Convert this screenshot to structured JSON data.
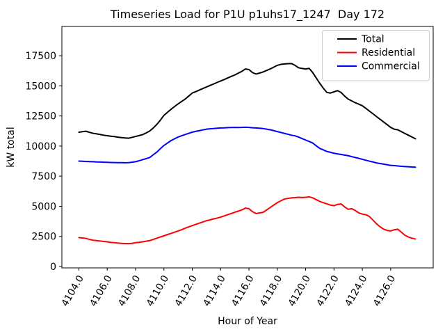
{
  "chart_data": {
    "type": "line",
    "title": "Timeseries Load for P1U p1uhs17_1247  Day 172",
    "xlabel": "Hour of Year",
    "ylabel": "kW total",
    "x_start": 4104.0,
    "x_step": 0.25,
    "xlim": [
      4102.8,
      4129.0
    ],
    "ylim": [
      -115,
      19930
    ],
    "grid": false,
    "legend_position": "upper right",
    "xticks": [
      4104,
      4106,
      4108,
      4110,
      4112,
      4114,
      4116,
      4118,
      4120,
      4122,
      4124,
      4126
    ],
    "xtick_labels": [
      "4104.0",
      "4106.0",
      "4108.0",
      "4110.0",
      "4112.0",
      "4114.0",
      "4116.0",
      "4118.0",
      "4120.0",
      "4122.0",
      "4124.0",
      "4126.0"
    ],
    "yticks": [
      0,
      2500,
      5000,
      7500,
      10000,
      12500,
      15000,
      17500
    ],
    "ytick_labels": [
      "0",
      "2500",
      "5000",
      "7500",
      "10000",
      "12500",
      "15000",
      "17500"
    ],
    "series": [
      {
        "name": "Total",
        "color": "#000000",
        "values": [
          11150,
          11190,
          11230,
          11140,
          11060,
          11010,
          10960,
          10900,
          10860,
          10820,
          10790,
          10740,
          10700,
          10670,
          10650,
          10720,
          10800,
          10870,
          10950,
          11090,
          11250,
          11500,
          11800,
          12150,
          12550,
          12800,
          13050,
          13280,
          13500,
          13700,
          13900,
          14150,
          14400,
          14520,
          14650,
          14780,
          14900,
          15030,
          15150,
          15280,
          15400,
          15520,
          15650,
          15780,
          15900,
          16050,
          16200,
          16400,
          16350,
          16100,
          15980,
          16060,
          16150,
          16280,
          16400,
          16550,
          16700,
          16780,
          16820,
          16840,
          16850,
          16700,
          16500,
          16440,
          16400,
          16450,
          16100,
          15650,
          15200,
          14800,
          14450,
          14400,
          14500,
          14600,
          14450,
          14150,
          13900,
          13750,
          13600,
          13480,
          13350,
          13130,
          12900,
          12680,
          12450,
          12230,
          12000,
          11780,
          11550,
          11400,
          11350,
          11200,
          11050,
          10900,
          10750,
          10600
        ]
      },
      {
        "name": "Residential",
        "color": "#ff0000",
        "values": [
          2400,
          2370,
          2330,
          2250,
          2180,
          2150,
          2120,
          2080,
          2050,
          2000,
          1980,
          1950,
          1920,
          1910,
          1900,
          1930,
          1980,
          2010,
          2050,
          2100,
          2150,
          2250,
          2350,
          2450,
          2550,
          2650,
          2750,
          2850,
          2950,
          3060,
          3180,
          3290,
          3400,
          3500,
          3600,
          3700,
          3800,
          3870,
          3950,
          4020,
          4100,
          4200,
          4300,
          4400,
          4500,
          4600,
          4700,
          4850,
          4800,
          4550,
          4400,
          4450,
          4500,
          4700,
          4900,
          5100,
          5300,
          5450,
          5600,
          5650,
          5700,
          5720,
          5750,
          5730,
          5750,
          5780,
          5700,
          5550,
          5400,
          5300,
          5200,
          5100,
          5050,
          5150,
          5200,
          4950,
          4750,
          4800,
          4650,
          4450,
          4350,
          4300,
          4150,
          3850,
          3550,
          3300,
          3100,
          3000,
          2950,
          3050,
          3100,
          2850,
          2600,
          2450,
          2350,
          2280
        ]
      },
      {
        "name": "Commercial",
        "color": "#0000ff",
        "values": [
          8750,
          8740,
          8720,
          8710,
          8700,
          8680,
          8670,
          8660,
          8650,
          8640,
          8630,
          8625,
          8620,
          8615,
          8620,
          8660,
          8700,
          8780,
          8870,
          8960,
          9050,
          9280,
          9500,
          9780,
          10050,
          10250,
          10450,
          10600,
          10750,
          10860,
          10960,
          11060,
          11150,
          11220,
          11280,
          11340,
          11400,
          11430,
          11450,
          11480,
          11500,
          11510,
          11530,
          11540,
          11550,
          11540,
          11550,
          11560,
          11550,
          11520,
          11500,
          11480,
          11450,
          11400,
          11350,
          11280,
          11200,
          11130,
          11050,
          10980,
          10900,
          10850,
          10750,
          10620,
          10500,
          10380,
          10250,
          10020,
          9800,
          9680,
          9550,
          9480,
          9400,
          9350,
          9300,
          9250,
          9200,
          9120,
          9050,
          8980,
          8900,
          8820,
          8750,
          8680,
          8600,
          8550,
          8500,
          8450,
          8400,
          8380,
          8350,
          8320,
          8300,
          8280,
          8260,
          8250
        ]
      }
    ]
  }
}
